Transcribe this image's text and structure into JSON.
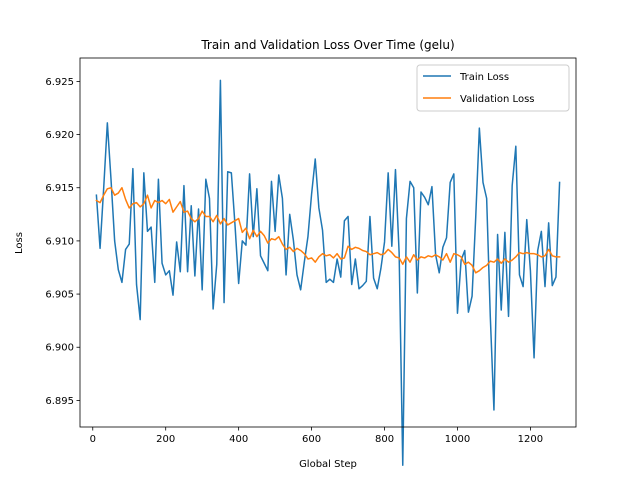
{
  "chart_data": {
    "type": "line",
    "title": "Train and Validation Loss Over Time (gelu)",
    "xlabel": "Global Step",
    "ylabel": "Loss",
    "xlim": [
      -35,
      1325
    ],
    "ylim": [
      6.8925,
      6.9272
    ],
    "xticks": [
      0,
      200,
      400,
      600,
      800,
      1000,
      1200
    ],
    "yticks": [
      6.895,
      6.9,
      6.905,
      6.91,
      6.915,
      6.92,
      6.925
    ],
    "xtick_labels": [
      "0",
      "200",
      "400",
      "600",
      "800",
      "1000",
      "1200"
    ],
    "ytick_labels": [
      "6.895",
      "6.900",
      "6.905",
      "6.910",
      "6.915",
      "6.920",
      "6.925"
    ],
    "grid": false,
    "legend_position": "upper-right",
    "series": [
      {
        "name": "Train Loss",
        "color": "#1f77b4",
        "x": [
          10,
          20,
          30,
          40,
          50,
          60,
          70,
          80,
          90,
          100,
          110,
          120,
          130,
          140,
          150,
          160,
          170,
          180,
          190,
          200,
          210,
          220,
          230,
          240,
          250,
          260,
          270,
          280,
          290,
          300,
          310,
          320,
          330,
          340,
          350,
          360,
          370,
          380,
          390,
          400,
          410,
          420,
          430,
          440,
          450,
          460,
          470,
          480,
          490,
          500,
          510,
          520,
          530,
          540,
          550,
          560,
          570,
          580,
          590,
          600,
          610,
          620,
          630,
          640,
          650,
          660,
          670,
          680,
          690,
          700,
          710,
          720,
          730,
          740,
          750,
          760,
          770,
          780,
          790,
          800,
          810,
          820,
          830,
          840,
          850,
          860,
          870,
          880,
          890,
          900,
          910,
          920,
          930,
          940,
          950,
          960,
          970,
          980,
          990,
          1000,
          1010,
          1020,
          1030,
          1040,
          1050,
          1060,
          1070,
          1080,
          1090,
          1100,
          1110,
          1120,
          1130,
          1140,
          1150,
          1160,
          1170,
          1180,
          1190,
          1200,
          1210,
          1220,
          1230,
          1240,
          1250,
          1260,
          1270,
          1280
        ],
        "y": [
          6.9143,
          6.9093,
          6.915,
          6.9211,
          6.9158,
          6.91,
          6.9073,
          6.9061,
          6.9092,
          6.9097,
          6.9168,
          6.9059,
          6.9026,
          6.9164,
          6.9109,
          6.9113,
          6.9061,
          6.9158,
          6.9079,
          6.9068,
          6.9072,
          6.9049,
          6.9099,
          6.9071,
          6.9152,
          6.9071,
          6.9133,
          6.9067,
          6.913,
          6.9054,
          6.9158,
          6.914,
          6.9036,
          6.9078,
          6.9251,
          6.9042,
          6.9165,
          6.9164,
          6.9115,
          6.906,
          6.91,
          6.9096,
          6.9163,
          6.9104,
          6.9149,
          6.9086,
          6.9079,
          6.9072,
          6.9156,
          6.9109,
          6.9162,
          6.914,
          6.9068,
          6.9125,
          6.9101,
          6.9068,
          6.9054,
          6.908,
          6.9104,
          6.9144,
          6.9177,
          6.9131,
          6.911,
          6.9061,
          6.9064,
          6.9061,
          6.9083,
          6.9066,
          6.9119,
          6.9123,
          6.9059,
          6.9083,
          6.9055,
          6.9058,
          6.9062,
          6.9123,
          6.9065,
          6.9055,
          6.9074,
          6.9099,
          6.9164,
          6.9095,
          6.9167,
          6.9089,
          6.8889,
          6.9121,
          6.9156,
          6.915,
          6.9051,
          6.9146,
          6.9141,
          6.9134,
          6.9151,
          6.9087,
          6.907,
          6.9094,
          6.9103,
          6.9155,
          6.9163,
          6.9032,
          6.9082,
          6.9091,
          6.9033,
          6.9048,
          6.9122,
          6.9206,
          6.9155,
          6.914,
          6.9029,
          6.8941,
          6.9106,
          6.9035,
          6.9108,
          6.9029,
          6.9152,
          6.9189,
          6.9068,
          6.9057,
          6.912,
          6.9072,
          6.899,
          6.9091,
          6.9109,
          6.9057,
          6.9117,
          6.9058,
          6.9066,
          6.9155
        ]
      },
      {
        "name": "Validation Loss",
        "color": "#ff7f0e",
        "x": [
          10,
          20,
          30,
          40,
          50,
          60,
          70,
          80,
          90,
          100,
          110,
          120,
          130,
          140,
          150,
          160,
          170,
          180,
          190,
          200,
          210,
          220,
          230,
          240,
          250,
          260,
          270,
          280,
          290,
          300,
          310,
          320,
          330,
          340,
          350,
          360,
          370,
          380,
          390,
          400,
          410,
          420,
          430,
          440,
          450,
          460,
          470,
          480,
          490,
          500,
          510,
          520,
          530,
          540,
          550,
          560,
          570,
          580,
          590,
          600,
          610,
          620,
          630,
          640,
          650,
          660,
          670,
          680,
          690,
          700,
          710,
          720,
          730,
          740,
          750,
          760,
          770,
          780,
          790,
          800,
          810,
          820,
          830,
          840,
          850,
          860,
          870,
          880,
          890,
          900,
          910,
          920,
          930,
          940,
          950,
          960,
          970,
          980,
          990,
          1000,
          1010,
          1020,
          1030,
          1040,
          1050,
          1060,
          1070,
          1080,
          1090,
          1100,
          1110,
          1120,
          1130,
          1140,
          1150,
          1160,
          1170,
          1180,
          1190,
          1200,
          1210,
          1220,
          1230,
          1240,
          1250,
          1260,
          1270,
          1280
        ],
        "y": [
          6.9138,
          6.9136,
          6.9143,
          6.9149,
          6.915,
          6.9143,
          6.9145,
          6.915,
          6.9139,
          6.9131,
          6.9135,
          6.9136,
          6.9132,
          6.9135,
          6.9143,
          6.9131,
          6.9138,
          6.9136,
          6.9138,
          6.9135,
          6.9139,
          6.9127,
          6.9132,
          6.9137,
          6.9127,
          6.9128,
          6.9121,
          6.9118,
          6.9121,
          6.9128,
          6.9123,
          6.9123,
          6.9118,
          6.9124,
          6.9116,
          6.9121,
          6.9115,
          6.9117,
          6.9119,
          6.9121,
          6.9108,
          6.9112,
          6.9102,
          6.911,
          6.9104,
          6.9109,
          6.9105,
          6.9098,
          6.9102,
          6.9101,
          6.9104,
          6.9097,
          6.9092,
          6.9094,
          6.909,
          6.9093,
          6.9091,
          6.9088,
          6.9083,
          6.9084,
          6.908,
          6.9085,
          6.9088,
          6.9086,
          6.9087,
          6.9084,
          6.9088,
          6.9083,
          6.9084,
          6.9095,
          6.9092,
          6.9094,
          6.9093,
          6.9091,
          6.909,
          6.9087,
          6.9088,
          6.9089,
          6.9087,
          6.9088,
          6.9092,
          6.9089,
          6.9085,
          6.9084,
          6.9078,
          6.9085,
          6.908,
          6.9087,
          6.9082,
          6.9085,
          6.9084,
          6.9086,
          6.9085,
          6.9087,
          6.9085,
          6.9082,
          6.9088,
          6.908,
          6.9088,
          6.9087,
          6.9085,
          6.9078,
          6.908,
          6.9077,
          6.907,
          6.9072,
          6.9075,
          6.9077,
          6.9081,
          6.908,
          6.9083,
          6.9079,
          6.9083,
          6.908,
          6.9082,
          6.9085,
          6.9089,
          6.9088,
          6.9089,
          6.9088,
          6.9088,
          6.9087,
          6.9085,
          6.9086,
          6.9092,
          6.9086,
          6.9085,
          6.9085
        ]
      }
    ]
  }
}
